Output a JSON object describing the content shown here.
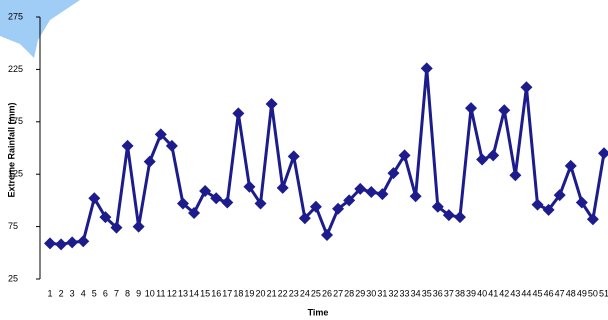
{
  "chart_data": {
    "type": "line",
    "x_label": "Time",
    "y_label": "Extreme Rainfall (mm)",
    "categories": [
      "1",
      "2",
      "3",
      "4",
      "5",
      "6",
      "7",
      "8",
      "9",
      "10",
      "11",
      "12",
      "13",
      "14",
      "15",
      "16",
      "17",
      "18",
      "19",
      "20",
      "21",
      "22",
      "23",
      "24",
      "25",
      "26",
      "27",
      "28",
      "29",
      "30",
      "31",
      "32",
      "33",
      "34",
      "35",
      "36",
      "37",
      "38",
      "39",
      "40",
      "41",
      "42",
      "43",
      "44",
      "45",
      "46",
      "47",
      "48",
      "49",
      "50",
      "51"
    ],
    "series": [
      {
        "name": "Extreme Rainfall",
        "color": "#1c1c8c",
        "values": [
          59,
          58,
          60,
          61,
          102,
          84,
          74,
          152,
          75,
          137,
          163,
          152,
          97,
          88,
          109,
          102,
          98,
          183,
          113,
          97,
          192,
          112,
          142,
          83,
          94,
          67,
          92,
          100,
          111,
          108,
          106,
          126,
          143,
          104,
          226,
          94,
          86,
          84,
          188,
          139,
          143,
          186,
          124,
          208,
          96,
          91,
          105,
          133,
          98,
          82,
          145
        ]
      }
    ],
    "ylim": [
      25,
      275
    ],
    "yticks": [
      25,
      75,
      125,
      175,
      225,
      275
    ],
    "grid": false
  }
}
